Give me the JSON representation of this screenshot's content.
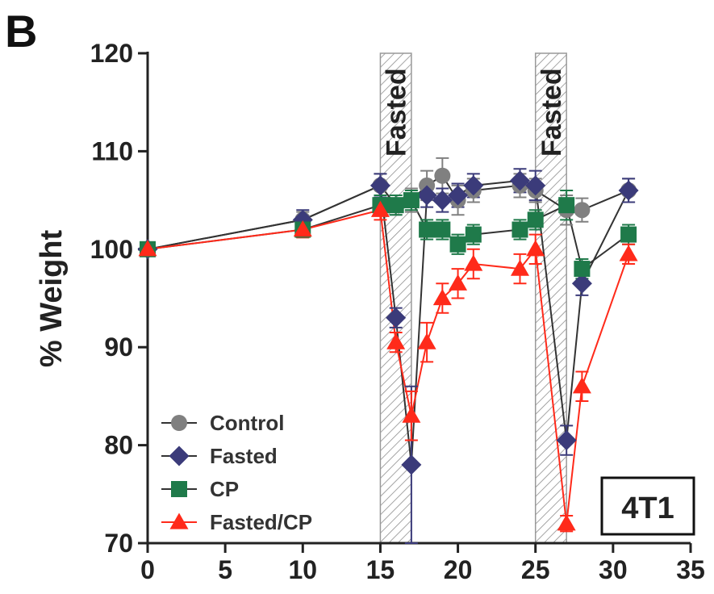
{
  "panel_label": "B",
  "chart_data": {
    "type": "line",
    "title": "",
    "xlabel": "",
    "ylabel": "% Weight",
    "xlim": [
      0,
      35
    ],
    "ylim": [
      70,
      120
    ],
    "xticks": [
      0,
      5,
      10,
      15,
      20,
      25,
      30,
      35
    ],
    "yticks": [
      70,
      80,
      90,
      100,
      110,
      120
    ],
    "fasting_periods": [
      {
        "label": "Fasted",
        "x_start": 15,
        "x_end": 17
      },
      {
        "label": "Fasted",
        "x_start": 25,
        "x_end": 27
      }
    ],
    "badge": "4T1",
    "legend_position": "bottom-left",
    "series": [
      {
        "name": "Control",
        "color": "#808080",
        "marker": "circle",
        "x": [
          0,
          10,
          15,
          16,
          17,
          18,
          19,
          20,
          21,
          24,
          25,
          27,
          28,
          31
        ],
        "y": [
          100,
          103,
          106.5,
          104.5,
          105,
          106.5,
          107.5,
          105,
          106,
          106.5,
          106,
          104,
          104,
          106
        ],
        "err": [
          0.5,
          0.8,
          1.2,
          1,
          1.2,
          1.5,
          1.8,
          1.5,
          1.2,
          1.2,
          1.2,
          1.5,
          1.2,
          1.2
        ]
      },
      {
        "name": "Fasted",
        "color": "#3b3b7a",
        "marker": "diamond",
        "x": [
          0,
          10,
          15,
          16,
          17,
          18,
          19,
          20,
          21,
          24,
          25,
          27,
          28,
          31
        ],
        "y": [
          100,
          103,
          106.5,
          93,
          78,
          105.5,
          105,
          105.5,
          106.5,
          107,
          106.5,
          80.5,
          96.5,
          106
        ],
        "err": [
          0.5,
          1,
          1.2,
          1,
          8,
          1.2,
          1.2,
          1.2,
          1.2,
          1.2,
          1.5,
          1.5,
          1.2,
          1.2
        ]
      },
      {
        "name": "CP",
        "color": "#1f7a4a",
        "marker": "square",
        "x": [
          0,
          10,
          15,
          16,
          17,
          18,
          19,
          20,
          21,
          24,
          25,
          27,
          28,
          31
        ],
        "y": [
          100,
          102,
          104.5,
          104.5,
          105,
          102,
          102,
          100.5,
          101.5,
          102,
          103,
          104.5,
          98,
          101.5
        ],
        "err": [
          0.5,
          0.8,
          1,
          1,
          1,
          1,
          1,
          1,
          1,
          1,
          1,
          1.5,
          1,
          1
        ]
      },
      {
        "name": "Fasted/CP",
        "color": "#ff2a1a",
        "marker": "triangle",
        "x": [
          0,
          10,
          15,
          16,
          17,
          18,
          19,
          20,
          21,
          24,
          25,
          27,
          28,
          31
        ],
        "y": [
          100,
          102,
          104,
          90.5,
          83,
          90.5,
          95,
          96.5,
          98.5,
          98,
          100,
          72,
          86,
          99.5
        ],
        "err": [
          0.5,
          0.8,
          1,
          1,
          2.5,
          2,
          1.5,
          1.5,
          1.5,
          1.5,
          1.5,
          0.8,
          1.5,
          1
        ]
      }
    ]
  }
}
